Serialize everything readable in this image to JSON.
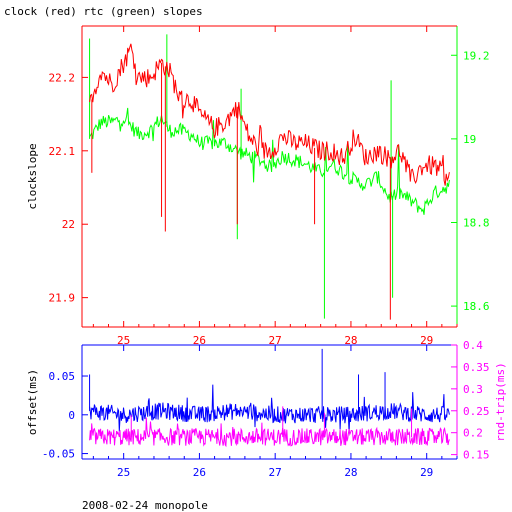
{
  "title": "clock (red) rtc (green) slopes",
  "footer": "2008-02-24 monopole",
  "colors": {
    "clock": "#ff0000",
    "rtc": "#00ff00",
    "offset": "#0000ff",
    "rndtrip": "#ff00ff",
    "top_left_axis": "#ff0000",
    "top_right_axis": "#00ff00",
    "top_bottom_axis": "#ff0000",
    "bottom_frame": "#0000ff",
    "bottom_right_axis": "#ff00ff"
  },
  "chart_data": [
    {
      "type": "line",
      "title": "clock (red) rtc (green) slopes",
      "ylabel": "clockslope",
      "xlim": [
        24.45,
        29.4
      ],
      "ylim_left": [
        21.86,
        22.27
      ],
      "ylim_right": [
        18.55,
        19.27
      ],
      "grid": false,
      "x_ticks": [
        "25",
        "26",
        "27",
        "28",
        "29"
      ],
      "y_ticks_left": [
        "21.9",
        "22",
        "22.1",
        "22.2"
      ],
      "y_ticks_right": [
        "18.6",
        "18.8",
        "19",
        "19.2"
      ],
      "series": [
        {
          "name": "clock",
          "axis": "left",
          "x": [
            24.55,
            24.7,
            24.85,
            25.0,
            25.1,
            25.2,
            25.35,
            25.5,
            25.6,
            25.75,
            25.9,
            26.0,
            26.2,
            26.35,
            26.5,
            26.65,
            26.8,
            26.95,
            27.1,
            27.25,
            27.4,
            27.6,
            27.75,
            27.9,
            28.05,
            28.2,
            28.35,
            28.5,
            28.65,
            28.8,
            28.95,
            29.1,
            29.3
          ],
          "values": [
            22.16,
            22.21,
            22.19,
            22.22,
            22.24,
            22.2,
            22.2,
            22.22,
            22.21,
            22.17,
            22.17,
            22.15,
            22.13,
            22.14,
            22.16,
            22.12,
            22.1,
            22.1,
            22.12,
            22.11,
            22.11,
            22.1,
            22.1,
            22.09,
            22.12,
            22.09,
            22.1,
            22.09,
            22.1,
            22.06,
            22.08,
            22.08,
            22.06
          ],
          "spikes": [
            {
              "x": 24.58,
              "value": 22.07
            },
            {
              "x": 25.5,
              "value": 22.01
            },
            {
              "x": 25.55,
              "value": 21.99
            },
            {
              "x": 26.5,
              "value": 22.0
            },
            {
              "x": 27.52,
              "value": 22.0
            },
            {
              "x": 28.52,
              "value": 21.87
            }
          ]
        },
        {
          "name": "rtc",
          "axis": "right",
          "x": [
            24.55,
            24.7,
            24.85,
            25.0,
            25.1,
            25.2,
            25.35,
            25.5,
            25.6,
            25.75,
            25.9,
            26.0,
            26.2,
            26.35,
            26.5,
            26.65,
            26.8,
            26.95,
            27.1,
            27.25,
            27.4,
            27.6,
            27.75,
            27.9,
            28.05,
            28.2,
            28.35,
            28.5,
            28.65,
            28.8,
            28.95,
            29.1,
            29.3
          ],
          "values": [
            19.0,
            19.04,
            19.04,
            19.05,
            19.03,
            19.01,
            19.02,
            19.05,
            19.02,
            19.02,
            19.01,
            18.99,
            18.99,
            18.99,
            18.97,
            18.96,
            18.95,
            18.93,
            18.96,
            18.95,
            18.94,
            18.92,
            18.94,
            18.92,
            18.9,
            18.89,
            18.91,
            18.86,
            18.87,
            18.85,
            18.83,
            18.87,
            18.89
          ],
          "spikes": [
            {
              "x": 24.55,
              "value": 19.24
            },
            {
              "x": 25.57,
              "value": 19.25
            },
            {
              "x": 26.5,
              "value": 18.76
            },
            {
              "x": 26.55,
              "value": 19.12
            },
            {
              "x": 27.65,
              "value": 18.57
            },
            {
              "x": 28.53,
              "value": 19.14
            },
            {
              "x": 28.55,
              "value": 18.62
            }
          ]
        }
      ]
    },
    {
      "type": "line",
      "ylabel_left": "offset(ms)",
      "ylabel_right": "rnd-trip(ms)",
      "xlim": [
        24.45,
        29.4
      ],
      "ylim_left": [
        -0.057,
        0.09
      ],
      "ylim_right": [
        0.14,
        0.4
      ],
      "grid": false,
      "x_ticks": [
        "25",
        "26",
        "27",
        "28",
        "29"
      ],
      "y_ticks_left": [
        "-0.05",
        "0",
        "0.05"
      ],
      "y_ticks_right": [
        "0.15",
        "0.2",
        "0.25",
        "0.3",
        "0.35",
        "0.4"
      ],
      "series": [
        {
          "name": "offset",
          "axis": "left",
          "x": [
            24.55,
            25.0,
            25.5,
            26.0,
            26.5,
            27.0,
            27.5,
            28.0,
            28.5,
            29.0,
            29.3
          ],
          "values": [
            0.005,
            0.0,
            0.005,
            0.0,
            0.005,
            0.0,
            0.0,
            0.0,
            0.005,
            0.0,
            0.0
          ],
          "spikes": [
            {
              "x": 24.55,
              "value": 0.052
            },
            {
              "x": 27.62,
              "value": 0.085
            },
            {
              "x": 28.1,
              "value": 0.052
            },
            {
              "x": 28.45,
              "value": 0.055
            }
          ]
        },
        {
          "name": "rnd-trip",
          "axis": "right",
          "x": [
            24.55,
            25.0,
            25.5,
            26.0,
            26.5,
            27.0,
            27.5,
            28.0,
            28.5,
            29.0,
            29.3
          ],
          "values": [
            0.19,
            0.19,
            0.19,
            0.19,
            0.19,
            0.19,
            0.19,
            0.19,
            0.19,
            0.19,
            0.19
          ],
          "spikes": [
            {
              "x": 25.1,
              "value": 0.24
            },
            {
              "x": 27.1,
              "value": 0.26
            },
            {
              "x": 27.65,
              "value": 0.245
            },
            {
              "x": 28.8,
              "value": 0.255
            }
          ]
        }
      ]
    }
  ]
}
